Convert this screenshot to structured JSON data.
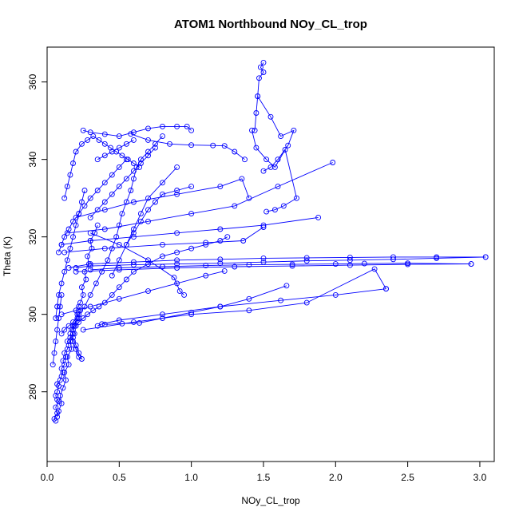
{
  "chart_data": {
    "type": "line",
    "title": "ATOM1 Northbound NOy_CL_trop",
    "xlabel": "NOy_CL_trop",
    "ylabel": "Theta (K)",
    "xlim": [
      0,
      3.1
    ],
    "ylim": [
      262,
      369
    ],
    "x_ticks": [
      0.0,
      0.5,
      1.0,
      1.5,
      2.0,
      2.5,
      3.0
    ],
    "x_tick_labels": [
      "0.0",
      "0.5",
      "1.0",
      "1.5",
      "2.0",
      "2.5",
      "3.0"
    ],
    "y_ticks": [
      280,
      300,
      320,
      340,
      360
    ],
    "y_tick_labels": [
      "280",
      "300",
      "320",
      "340",
      "360"
    ],
    "grid": false,
    "legend": "none",
    "markers": "open-circle",
    "color": "#0000ff",
    "series": [
      {
        "x": [
          0.06,
          0.05,
          0.07,
          0.06,
          0.08,
          0.07,
          0.06,
          0.07,
          0.08,
          0.07,
          0.09,
          0.1,
          0.11,
          0.1,
          0.12,
          0.11,
          0.13,
          0.12,
          0.14,
          0.15,
          0.14,
          0.16,
          0.18,
          0.17,
          0.19,
          0.2,
          0.22,
          0.21,
          0.23,
          0.22
        ],
        "y": [
          272.5,
          273,
          274.5,
          276,
          277.5,
          278,
          279,
          280,
          281.5,
          282,
          283,
          284,
          285,
          286,
          287,
          288,
          289,
          290,
          291,
          292,
          293,
          294,
          295,
          296,
          297,
          298,
          299,
          300,
          301,
          302
        ]
      },
      {
        "x": [
          0.07,
          0.08,
          0.1,
          0.09,
          0.11,
          0.13,
          0.12,
          0.15,
          0.14,
          0.17,
          0.16,
          0.19,
          0.18,
          0.21,
          0.2,
          0.23,
          0.25,
          0.24,
          0.27,
          0.26,
          0.29,
          0.28,
          0.31,
          0.3,
          0.33,
          0.35
        ],
        "y": [
          273.5,
          275,
          277,
          279,
          281,
          283,
          285,
          287,
          289,
          291,
          293,
          295,
          297,
          299,
          301,
          303,
          305,
          307,
          309,
          311,
          313,
          315,
          317,
          319,
          321,
          323
        ]
      },
      {
        "x": [
          0.1,
          0.12,
          0.15,
          0.18,
          0.22,
          0.26,
          0.3,
          0.34,
          0.38,
          0.42,
          0.45,
          0.48,
          0.5,
          0.52,
          0.55,
          0.58,
          0.6,
          0.62,
          0.65,
          0.7,
          0.75,
          0.8
        ],
        "y": [
          295,
          296,
          297,
          298,
          300,
          302,
          305,
          308,
          311,
          314,
          317,
          320,
          323,
          326,
          329,
          332,
          335,
          338,
          340,
          342,
          344,
          346
        ]
      },
      {
        "x": [
          0.18,
          0.2,
          0.22,
          0.25,
          0.28,
          0.32,
          0.36,
          0.4,
          0.45,
          0.5,
          0.55,
          0.6,
          0.7,
          0.8,
          0.9,
          1.0,
          1.1,
          1.2,
          1.25
        ],
        "y": [
          296,
          297,
          298,
          299,
          300,
          301,
          302,
          303,
          305,
          307,
          309,
          311,
          313,
          315,
          316,
          317,
          318,
          319,
          320
        ]
      },
      {
        "x": [
          0.15,
          0.3,
          0.6,
          0.9,
          1.2,
          1.5,
          1.8,
          2.1,
          2.4,
          2.7,
          3.04
        ],
        "y": [
          312,
          313,
          313.5,
          314,
          314.2,
          314.5,
          314.6,
          314.7,
          314.8,
          314.8,
          314.8
        ]
      },
      {
        "x": [
          3.04,
          2.7,
          2.4,
          2.1,
          1.8,
          1.5,
          1.2,
          0.9,
          0.6,
          0.3,
          0.2
        ],
        "y": [
          314.8,
          314.5,
          314.2,
          314,
          313.8,
          313.5,
          313.2,
          313,
          312.8,
          312.5,
          312
        ]
      },
      {
        "x": [
          0.2,
          0.5,
          0.9,
          1.3,
          1.7,
          2.1,
          2.5,
          2.94
        ],
        "y": [
          311,
          311.5,
          312,
          312.3,
          312.5,
          312.7,
          312.9,
          313
        ]
      },
      {
        "x": [
          2.94,
          2.5,
          2.2,
          2.0,
          1.7,
          1.4,
          1.1,
          0.8,
          0.5,
          0.3
        ],
        "y": [
          313,
          313.2,
          313.1,
          313,
          312.9,
          312.8,
          312.6,
          312.3,
          312,
          311.5
        ]
      },
      {
        "x": [
          0.25,
          0.6,
          1.0,
          1.4,
          1.8,
          2.27,
          2.35
        ],
        "y": [
          296,
          298,
          300,
          301,
          303,
          311.7,
          306.6
        ]
      },
      {
        "x": [
          2.35,
          2.0,
          1.62,
          1.2,
          0.8,
          0.5,
          0.38,
          0.35
        ],
        "y": [
          306.6,
          305,
          303.6,
          302,
          300,
          298.5,
          297.5,
          297
        ]
      },
      {
        "x": [
          0.4,
          0.52,
          0.64,
          0.8,
          1.0,
          1.2,
          1.4,
          1.66
        ],
        "y": [
          297.4,
          297.6,
          297.8,
          299,
          300.5,
          302,
          304,
          307.4
        ]
      },
      {
        "x": [
          1.5,
          1.48,
          1.5,
          1.47,
          1.46,
          1.45,
          1.44
        ],
        "y": [
          365,
          363.8,
          362.5,
          361,
          356.3,
          352,
          347.5
        ]
      },
      {
        "x": [
          1.46,
          1.55,
          1.62,
          1.71,
          1.67,
          1.6,
          1.55,
          1.5
        ],
        "y": [
          356.3,
          351,
          346,
          347.5,
          343.6,
          340,
          338,
          337
        ]
      },
      {
        "x": [
          1.42,
          1.45,
          1.52,
          1.58,
          1.65,
          1.73,
          1.64,
          1.58,
          1.52
        ],
        "y": [
          347.5,
          343,
          340,
          338,
          342.5,
          330,
          328,
          327,
          326.5
        ]
      },
      {
        "x": [
          0.58,
          0.7,
          0.85,
          1.0,
          1.15,
          1.23,
          1.3,
          1.37
        ],
        "y": [
          346.6,
          345,
          344,
          343.7,
          343.6,
          343.5,
          342,
          340
        ]
      },
      {
        "x": [
          0.25,
          0.3,
          0.4,
          0.5,
          0.6,
          0.7,
          0.8,
          0.9,
          0.97,
          1.0
        ],
        "y": [
          347.5,
          347,
          346.5,
          346,
          347,
          348,
          348.5,
          348.5,
          348.5,
          347.5
        ]
      },
      {
        "x": [
          0.12,
          0.14,
          0.16,
          0.18,
          0.2,
          0.24,
          0.28,
          0.32,
          0.36,
          0.4,
          0.44,
          0.48,
          0.52,
          0.56,
          0.6,
          0.64
        ],
        "y": [
          330,
          333,
          336,
          339,
          342,
          344,
          345,
          346,
          345,
          344,
          343,
          342,
          341,
          340,
          339,
          338
        ]
      },
      {
        "x": [
          0.08,
          0.1,
          0.12,
          0.15,
          0.18,
          0.22,
          0.26,
          0.3,
          0.35,
          0.4,
          0.45,
          0.5,
          0.55
        ],
        "y": [
          316,
          318,
          320,
          322,
          324,
          326,
          328,
          330,
          332,
          334,
          336,
          338,
          340
        ]
      },
      {
        "x": [
          0.1,
          0.3,
          0.6,
          0.9,
          1.2,
          1.5,
          1.88
        ],
        "y": [
          318,
          319,
          320,
          321,
          322,
          323,
          325
        ]
      },
      {
        "x": [
          0.12,
          0.4,
          0.8,
          1.1,
          1.36,
          1.5
        ],
        "y": [
          316,
          317,
          318,
          318.5,
          319,
          322.5
        ]
      },
      {
        "x": [
          0.14,
          0.4,
          0.7,
          1.0,
          1.3,
          1.6,
          1.98
        ],
        "y": [
          321,
          322,
          324,
          326,
          328,
          333,
          339.2
        ]
      },
      {
        "x": [
          0.2,
          0.4,
          0.6,
          0.9,
          1.2,
          1.35,
          1.4
        ],
        "y": [
          325,
          327,
          329,
          331,
          333,
          335,
          330
        ]
      },
      {
        "x": [
          0.3,
          0.5,
          0.7,
          0.88,
          0.92,
          0.95
        ],
        "y": [
          321,
          318,
          314,
          309.5,
          306,
          305
        ]
      },
      {
        "x": [
          0.1,
          0.3,
          0.5,
          0.7,
          0.9,
          1.1,
          1.23
        ],
        "y": [
          300,
          302,
          304,
          306,
          308,
          310,
          311.2
        ]
      },
      {
        "x": [
          0.06,
          0.07,
          0.08,
          0.1,
          0.12,
          0.14,
          0.16,
          0.18,
          0.2,
          0.22,
          0.24,
          0.26
        ],
        "y": [
          299,
          302,
          305,
          308,
          311,
          314,
          317,
          320,
          323,
          326,
          329,
          332
        ]
      },
      {
        "x": [
          0.04,
          0.05,
          0.06,
          0.07,
          0.08,
          0.09,
          0.1
        ],
        "y": [
          287,
          290,
          293,
          296,
          299,
          302,
          305
        ]
      },
      {
        "x": [
          0.16,
          0.18,
          0.2,
          0.22,
          0.24,
          0.22,
          0.2,
          0.18
        ],
        "y": [
          295,
          293,
          291,
          289,
          288.5,
          290,
          292,
          294
        ]
      },
      {
        "x": [
          0.3,
          0.35,
          0.4,
          0.45,
          0.5,
          0.55,
          0.6,
          0.65,
          0.7,
          0.75
        ],
        "y": [
          325,
          327,
          329,
          331,
          333,
          335,
          337,
          339,
          341,
          343
        ]
      },
      {
        "x": [
          0.45,
          0.5,
          0.55,
          0.6,
          0.65,
          0.7,
          0.8,
          0.9
        ],
        "y": [
          310,
          314,
          318,
          322,
          326,
          330,
          334,
          338
        ]
      },
      {
        "x": [
          0.55,
          0.6,
          0.65,
          0.7,
          0.75,
          0.8,
          0.9,
          1.0
        ],
        "y": [
          318,
          321,
          324,
          327,
          329,
          331,
          332,
          333
        ]
      },
      {
        "x": [
          0.35,
          0.4,
          0.45,
          0.5,
          0.55,
          0.6
        ],
        "y": [
          340,
          341,
          342,
          343,
          344,
          345
        ]
      }
    ]
  }
}
